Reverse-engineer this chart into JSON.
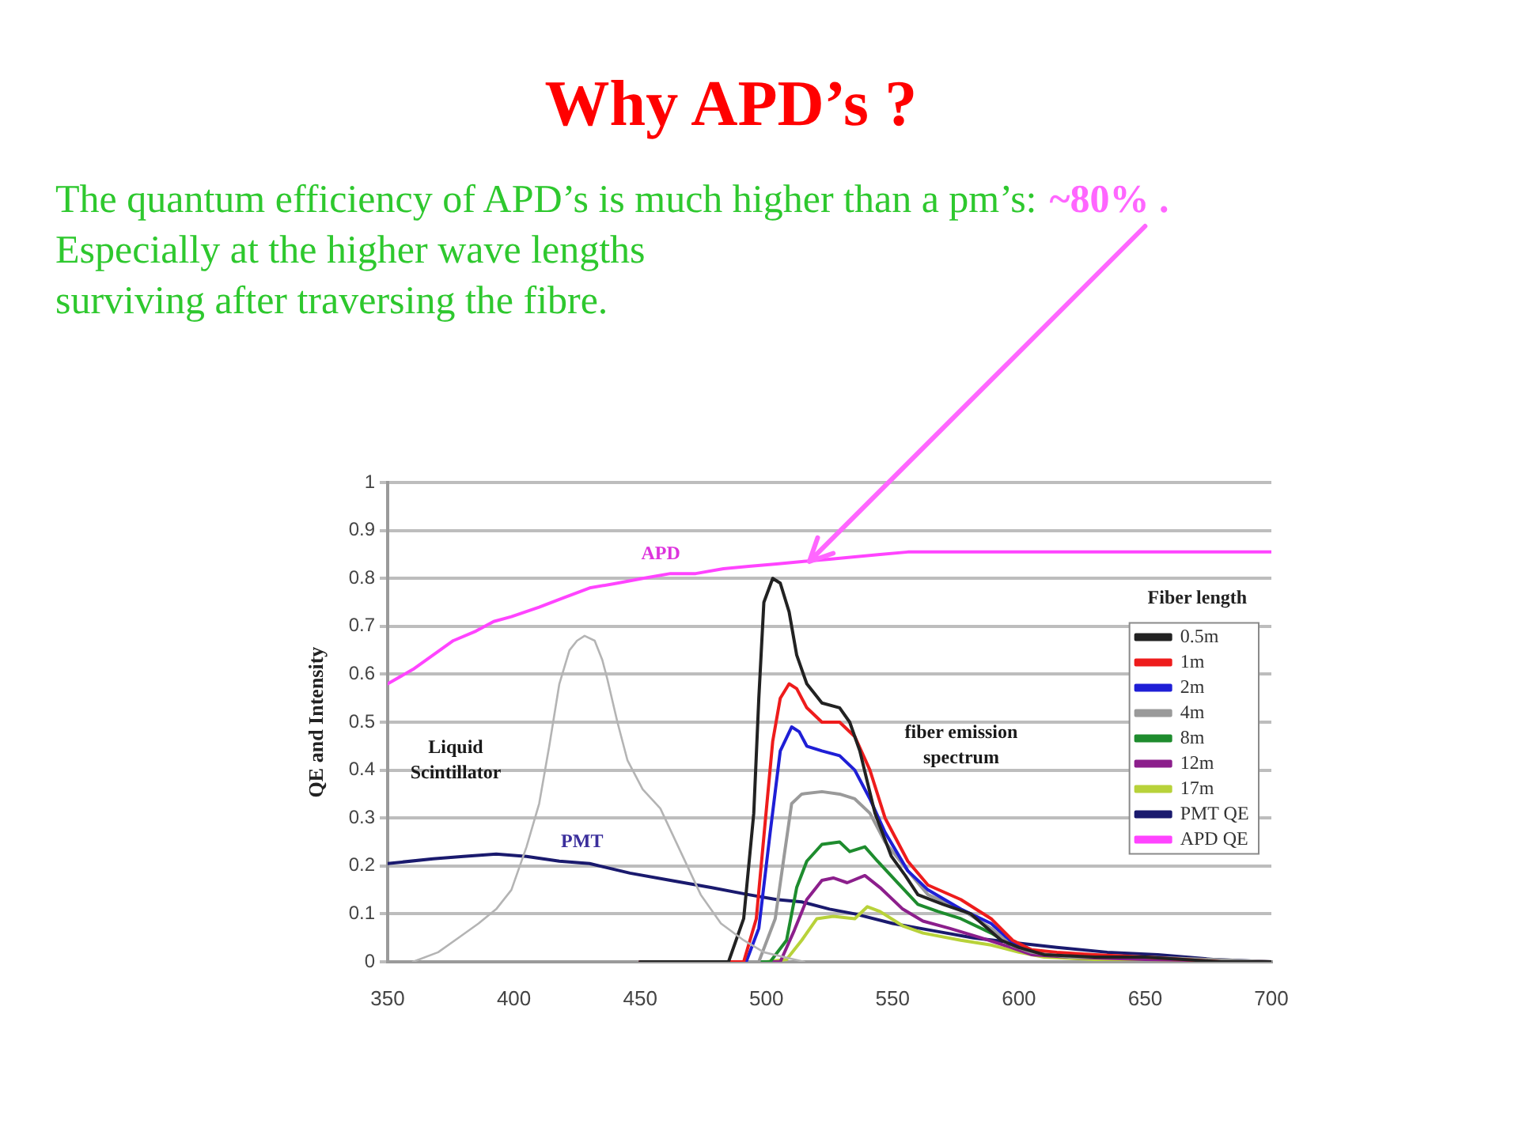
{
  "chart_data": {
    "type": "line",
    "title": "Why APD’s ?",
    "subtitle": "The quantum efficiency of APD’s is much higher than a pm’s:\nEspecially at the higher wave lengths\nsurviving after traversing the fibre.",
    "ylabel": "QE and Intensity",
    "legend_title": "Fiber length",
    "annotations": [
      {
        "text": "~80% .",
        "x": 517,
        "y": 0.835
      },
      "APD",
      "PMT",
      "Liquid\nScintillator",
      "fiber emission\nspectrum"
    ],
    "xlim": [
      350,
      700
    ],
    "xticks": [
      350,
      400,
      450,
      500,
      550,
      600,
      650,
      700
    ],
    "ylim": [
      0,
      1
    ],
    "yticks": [
      0,
      0.1,
      0.2,
      0.3,
      0.4,
      0.5,
      0.6,
      0.7,
      0.8,
      0.9,
      1
    ],
    "grid": "y",
    "legend": "right",
    "series": [
      {
        "color": "#b4b4b4",
        "x": [
          360,
          370,
          378,
          386,
          393,
          399,
          405,
          410,
          414,
          418,
          422,
          425,
          428,
          432,
          435,
          437,
          441,
          445,
          451,
          458,
          466,
          474,
          482,
          491,
          499,
          507,
          515
        ],
        "values": [
          0,
          0.02,
          0.05,
          0.08,
          0.11,
          0.15,
          0.24,
          0.33,
          0.45,
          0.58,
          0.65,
          0.67,
          0.68,
          0.67,
          0.63,
          0.59,
          0.5,
          0.42,
          0.36,
          0.32,
          0.23,
          0.14,
          0.08,
          0.045,
          0.02,
          0.01,
          0
        ]
      },
      {
        "name": "0.5m",
        "color": "#222222",
        "x": [
          450,
          480,
          485,
          491,
          495,
          497,
          499,
          502.5,
          505.5,
          509,
          512,
          516,
          522,
          529,
          533,
          537,
          543,
          549.5,
          555,
          560,
          570,
          581,
          593,
          600,
          610,
          630,
          650,
          680,
          700
        ],
        "values": [
          0,
          0,
          0,
          0.09,
          0.31,
          0.55,
          0.75,
          0.8,
          0.79,
          0.73,
          0.64,
          0.58,
          0.54,
          0.53,
          0.5,
          0.44,
          0.31,
          0.22,
          0.18,
          0.14,
          0.12,
          0.1,
          0.045,
          0.03,
          0.015,
          0.01,
          0.01,
          0,
          0
        ]
      },
      {
        "name": "1m",
        "color": "#ee1c1c",
        "x": [
          450,
          485,
          491,
          496,
          499.5,
          502.5,
          505.5,
          509,
          512,
          516,
          522,
          529,
          535,
          541,
          547,
          556,
          564,
          577,
          589,
          597.5,
          605,
          615,
          630,
          650,
          680,
          700
        ],
        "values": [
          0,
          0,
          0,
          0.09,
          0.29,
          0.46,
          0.55,
          0.58,
          0.57,
          0.53,
          0.5,
          0.5,
          0.47,
          0.4,
          0.3,
          0.21,
          0.16,
          0.13,
          0.09,
          0.045,
          0.025,
          0.02,
          0.015,
          0.01,
          0,
          0
        ]
      },
      {
        "name": "2m",
        "color": "#1f1fd6",
        "x": [
          450,
          487,
          492,
          497,
          501.5,
          505.5,
          510,
          513,
          516,
          522,
          529,
          535,
          541,
          547,
          556,
          564,
          577,
          589,
          597.5,
          605
        ],
        "values": [
          0,
          0,
          0,
          0.07,
          0.27,
          0.44,
          0.49,
          0.48,
          0.45,
          0.44,
          0.43,
          0.4,
          0.34,
          0.27,
          0.19,
          0.15,
          0.11,
          0.08,
          0.04,
          0.025
        ]
      },
      {
        "name": "4m",
        "color": "#9a9a9a",
        "x": [
          450,
          492,
          497,
          503.5,
          507,
          510,
          514,
          522,
          529,
          535,
          541,
          547,
          556,
          564,
          577,
          589,
          597,
          605,
          620,
          650,
          700
        ],
        "values": [
          0,
          0,
          0,
          0.09,
          0.22,
          0.33,
          0.35,
          0.355,
          0.35,
          0.34,
          0.31,
          0.25,
          0.19,
          0.14,
          0.11,
          0.07,
          0.035,
          0.02,
          0.01,
          0.01,
          0
        ]
      },
      {
        "name": "8m",
        "color": "#1e8c2e",
        "x": [
          450,
          495,
          501.5,
          508,
          512,
          516,
          522,
          529,
          533,
          539,
          544,
          552,
          560,
          568,
          577,
          589,
          597
        ],
        "values": [
          0,
          0,
          0,
          0.045,
          0.155,
          0.21,
          0.245,
          0.25,
          0.23,
          0.24,
          0.21,
          0.165,
          0.12,
          0.105,
          0.09,
          0.06,
          0.035
        ]
      },
      {
        "name": "12m",
        "color": "#8c1f8c",
        "x": [
          450,
          500,
          505.5,
          511,
          516,
          522,
          526.5,
          532,
          539,
          545,
          554,
          562,
          572.5,
          585,
          597,
          605,
          620,
          650,
          700
        ],
        "values": [
          0,
          0,
          0,
          0.065,
          0.13,
          0.17,
          0.175,
          0.165,
          0.18,
          0.155,
          0.11,
          0.085,
          0.07,
          0.05,
          0.03,
          0.015,
          0.01,
          0.005,
          0
        ]
      },
      {
        "name": "17m",
        "color": "#b8d23a",
        "x": [
          450,
          500,
          508,
          514,
          520,
          526.5,
          535,
          540,
          545,
          554,
          562,
          577,
          589,
          600,
          610,
          630,
          650,
          700
        ],
        "values": [
          0,
          0,
          0.005,
          0.045,
          0.09,
          0.095,
          0.09,
          0.115,
          0.105,
          0.075,
          0.06,
          0.045,
          0.035,
          0.02,
          0.01,
          0.005,
          0.005,
          0
        ]
      },
      {
        "name": "PMT QE",
        "color": "#1a1a6e",
        "x": [
          350,
          368,
          380,
          393,
          405,
          418,
          430,
          446,
          462,
          478,
          493,
          504,
          514,
          525,
          535,
          550,
          566,
          582,
          598,
          615,
          635,
          655,
          677,
          700
        ],
        "values": [
          0.205,
          0.215,
          0.22,
          0.225,
          0.22,
          0.21,
          0.205,
          0.185,
          0.17,
          0.155,
          0.14,
          0.13,
          0.125,
          0.11,
          0.1,
          0.08,
          0.065,
          0.05,
          0.04,
          0.03,
          0.02,
          0.015,
          0.005,
          0
        ]
      },
      {
        "name": "APD QE",
        "color": "#ff44ff",
        "x": [
          350,
          360,
          368,
          376,
          385,
          392,
          399,
          410,
          420,
          430,
          441,
          451,
          462,
          472,
          483,
          493,
          504,
          514,
          525,
          535,
          545,
          556,
          566,
          580,
          600,
          625,
          650,
          675,
          700
        ],
        "values": [
          0.58,
          0.61,
          0.64,
          0.67,
          0.69,
          0.71,
          0.72,
          0.74,
          0.76,
          0.78,
          0.79,
          0.8,
          0.81,
          0.81,
          0.82,
          0.825,
          0.83,
          0.835,
          0.84,
          0.845,
          0.85,
          0.855,
          0.855,
          0.855,
          0.855,
          0.855,
          0.855,
          0.855,
          0.855
        ]
      }
    ]
  }
}
